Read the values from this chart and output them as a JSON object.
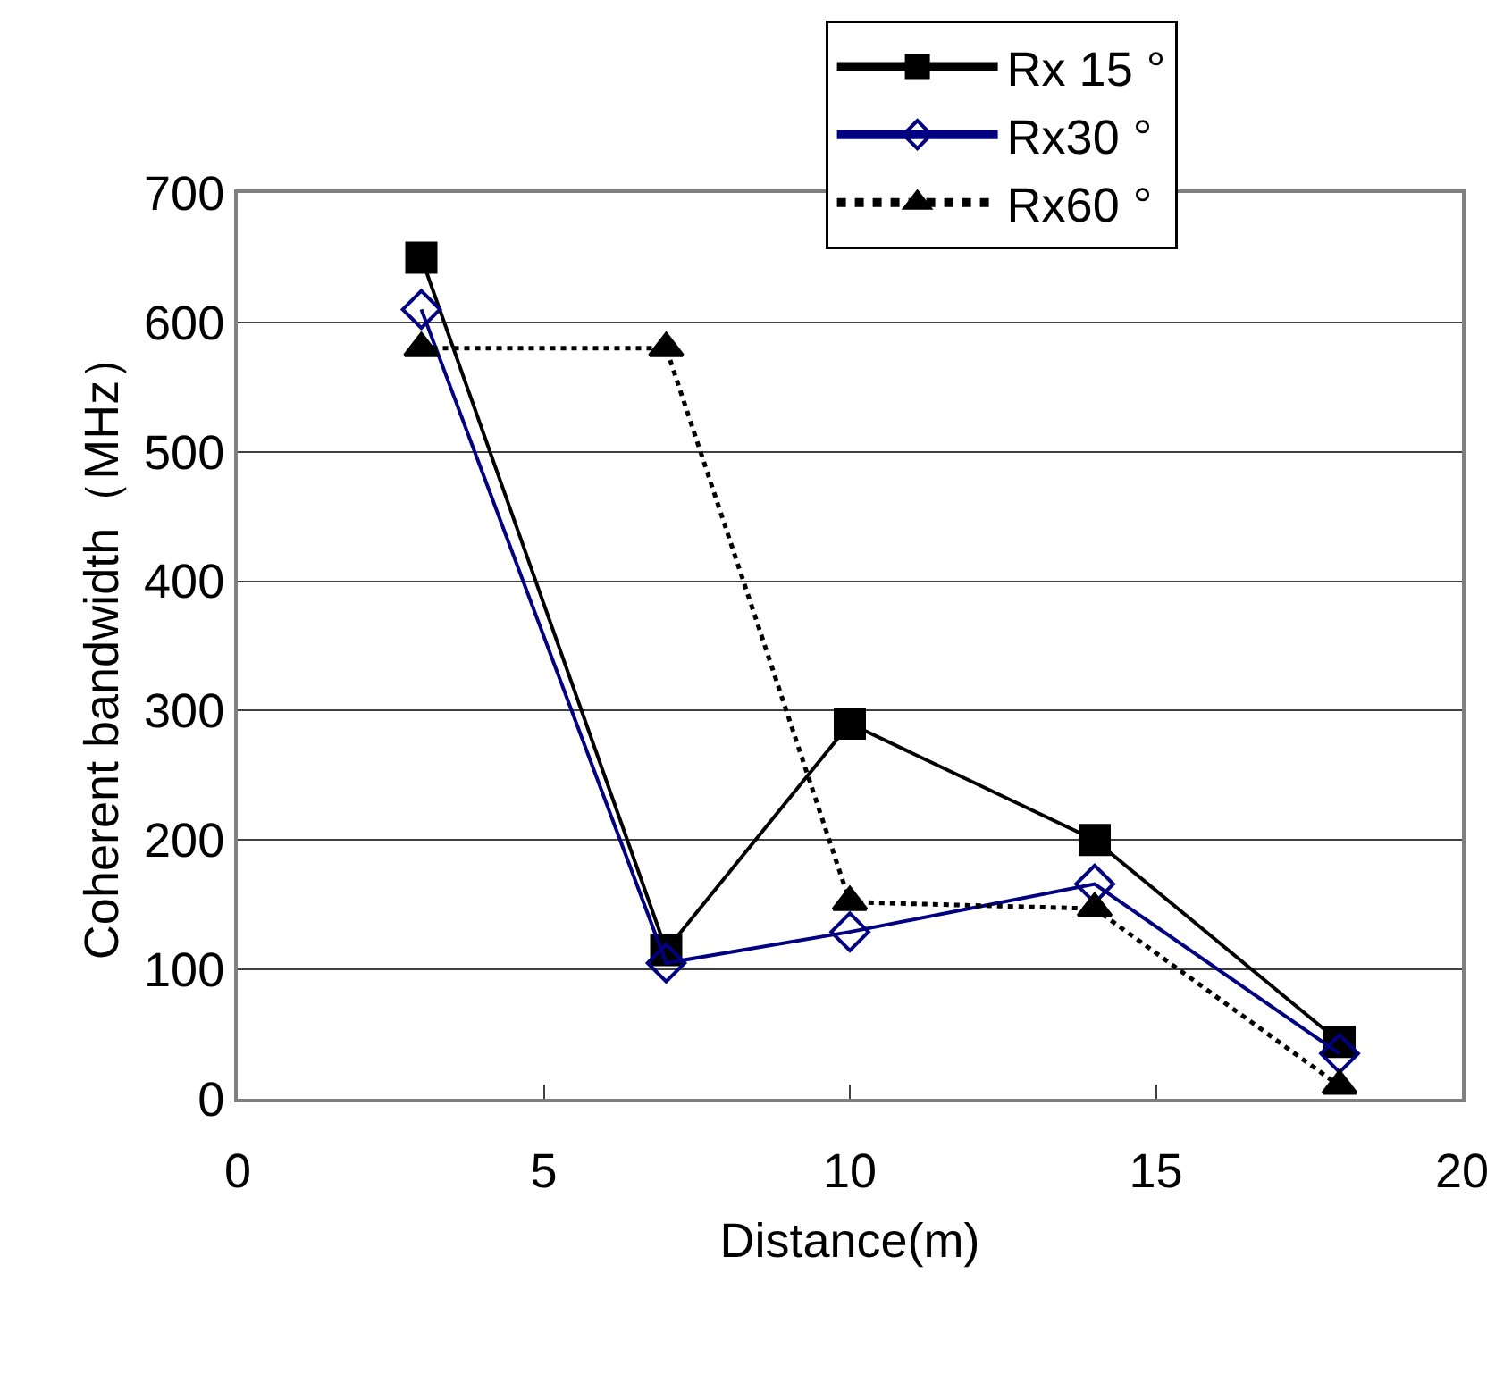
{
  "chart_data": {
    "type": "line",
    "xlabel": "Distance(m)",
    "ylabel": "Coherent bandwidth（MHz）",
    "xlim": [
      0,
      20
    ],
    "xticks": [
      0,
      5,
      10,
      15,
      20
    ],
    "ylim": [
      0,
      700
    ],
    "yticks": [
      0,
      100,
      200,
      300,
      400,
      500,
      600,
      700
    ],
    "grid": "y",
    "legend": "top right",
    "x": [
      3,
      7,
      10,
      14,
      18
    ],
    "series": [
      {
        "name": "Rx 15 °",
        "color": "#000000",
        "marker": "square",
        "line_style": "solid",
        "values": [
          650,
          115,
          290,
          200,
          44
        ]
      },
      {
        "name": "Rx30 °",
        "color": "#000080",
        "marker": "diamond",
        "line_style": "solid",
        "values": [
          610,
          105,
          129,
          166,
          35
        ]
      },
      {
        "name": "Rx60 °",
        "color": "#000000",
        "marker": "triangle",
        "line_style": "dotted",
        "values": [
          580,
          580,
          152,
          147,
          10
        ]
      }
    ]
  }
}
